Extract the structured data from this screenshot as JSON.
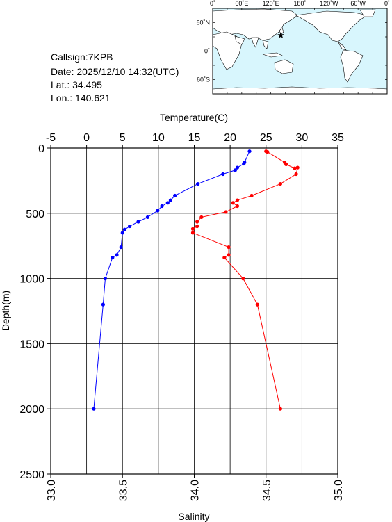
{
  "station": {
    "callsign": "Callsign:7KPB",
    "date": "Date:  2025/12/10 14:32(UTC)",
    "lat": "Lat.:  34.495",
    "lon": "Lon.:  140.621"
  },
  "map": {
    "top_labels": [
      "0˚",
      "60˚E",
      "120˚E",
      "180˚",
      "120˚W",
      "60˚W",
      "0˚"
    ],
    "left_labels": [
      "60˚N",
      "0˚",
      "60˚S"
    ],
    "marker_lon": 140.621,
    "marker_lat": 34.495,
    "ocean_color": "#d8f6fd",
    "land_color": "#ffffff",
    "marker_color": "#ff0000"
  },
  "chart_data": {
    "type": "line",
    "top_axis": {
      "label": "Temperature(C)",
      "range": [
        -5,
        35
      ],
      "ticks": [
        "-5",
        "0",
        "5",
        "10",
        "15",
        "20",
        "25",
        "30",
        "35"
      ]
    },
    "bottom_axis": {
      "label": "Salinity",
      "range": [
        33.0,
        35.0
      ],
      "ticks": [
        "33.0",
        "33.5",
        "34.0",
        "34.5",
        "35.0"
      ]
    },
    "y_axis": {
      "label": "Depth(m)",
      "range": [
        0,
        2500
      ],
      "inverted": true,
      "ticks": [
        "0",
        "500",
        "1000",
        "1500",
        "2000",
        "2500"
      ]
    },
    "grid": true,
    "series": [
      {
        "axis": "top",
        "color": "#0000ff",
        "points": [
          [
            22.7,
            25
          ],
          [
            22.0,
            110
          ],
          [
            21.9,
            120
          ],
          [
            21.0,
            150
          ],
          [
            20.7,
            170
          ],
          [
            19.0,
            200
          ],
          [
            15.5,
            275
          ],
          [
            12.3,
            365
          ],
          [
            11.7,
            400
          ],
          [
            11.3,
            420
          ],
          [
            10.5,
            445
          ],
          [
            9.9,
            480
          ],
          [
            8.5,
            530
          ],
          [
            7.2,
            565
          ],
          [
            6.0,
            600
          ],
          [
            5.3,
            625
          ],
          [
            5.0,
            650
          ],
          [
            4.8,
            760
          ],
          [
            4.2,
            820
          ],
          [
            3.6,
            840
          ],
          [
            2.6,
            1000
          ],
          [
            2.3,
            1200
          ],
          [
            1.0,
            2000
          ]
        ]
      },
      {
        "axis": "bottom",
        "color": "#ff0000",
        "points": [
          [
            34.5,
            25
          ],
          [
            34.51,
            30
          ],
          [
            34.63,
            110
          ],
          [
            34.64,
            125
          ],
          [
            34.7,
            155
          ],
          [
            34.72,
            150
          ],
          [
            34.71,
            200
          ],
          [
            34.6,
            275
          ],
          [
            34.4,
            365
          ],
          [
            34.3,
            400
          ],
          [
            34.27,
            420
          ],
          [
            34.3,
            445
          ],
          [
            34.22,
            490
          ],
          [
            34.05,
            530
          ],
          [
            34.02,
            565
          ],
          [
            34.02,
            600
          ],
          [
            33.99,
            620
          ],
          [
            33.99,
            650
          ],
          [
            34.24,
            760
          ],
          [
            34.24,
            820
          ],
          [
            34.21,
            840
          ],
          [
            34.34,
            1000
          ],
          [
            34.44,
            1200
          ],
          [
            34.6,
            2000
          ]
        ]
      }
    ]
  }
}
